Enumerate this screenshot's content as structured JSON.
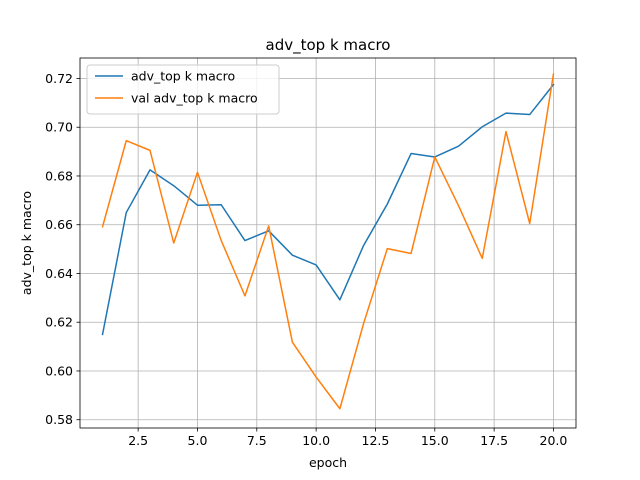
{
  "chart_data": {
    "type": "line",
    "title": "adv_top k macro",
    "xlabel": "epoch",
    "ylabel": "adv_top k macro",
    "xlim": [
      0.05,
      20.95
    ],
    "ylim": [
      0.5766,
      0.7284
    ],
    "xticks": [
      2.5,
      5.0,
      7.5,
      10.0,
      12.5,
      15.0,
      17.5,
      20.0
    ],
    "xtick_labels": [
      "2.5",
      "5.0",
      "7.5",
      "10.0",
      "12.5",
      "15.0",
      "17.5",
      "20.0"
    ],
    "yticks": [
      0.58,
      0.6,
      0.62,
      0.64,
      0.66,
      0.68,
      0.7,
      0.72
    ],
    "ytick_labels": [
      "0.58",
      "0.60",
      "0.62",
      "0.64",
      "0.66",
      "0.68",
      "0.70",
      "0.72"
    ],
    "grid": true,
    "legend_position": "top-left",
    "x": [
      1,
      2,
      3,
      4,
      5,
      6,
      7,
      8,
      9,
      10,
      11,
      12,
      13,
      14,
      15,
      16,
      17,
      18,
      19,
      20
    ],
    "series": [
      {
        "name": "adv_top k macro",
        "color": "#1f77b4",
        "values": [
          0.615,
          0.665,
          0.6825,
          0.676,
          0.668,
          0.6682,
          0.6535,
          0.6575,
          0.6475,
          0.6435,
          0.6292,
          0.6515,
          0.6685,
          0.6892,
          0.6878,
          0.6922,
          0.7002,
          0.7058,
          0.7052,
          0.7175
        ]
      },
      {
        "name": "val adv_top k macro",
        "color": "#ff7f0e",
        "values": [
          0.6592,
          0.6945,
          0.6905,
          0.6525,
          0.6815,
          0.6535,
          0.6308,
          0.6595,
          0.6118,
          0.5975,
          0.5845,
          0.6195,
          0.6502,
          0.6482,
          0.6878,
          0.6678,
          0.6462,
          0.6982,
          0.6605,
          0.7218
        ]
      }
    ]
  }
}
